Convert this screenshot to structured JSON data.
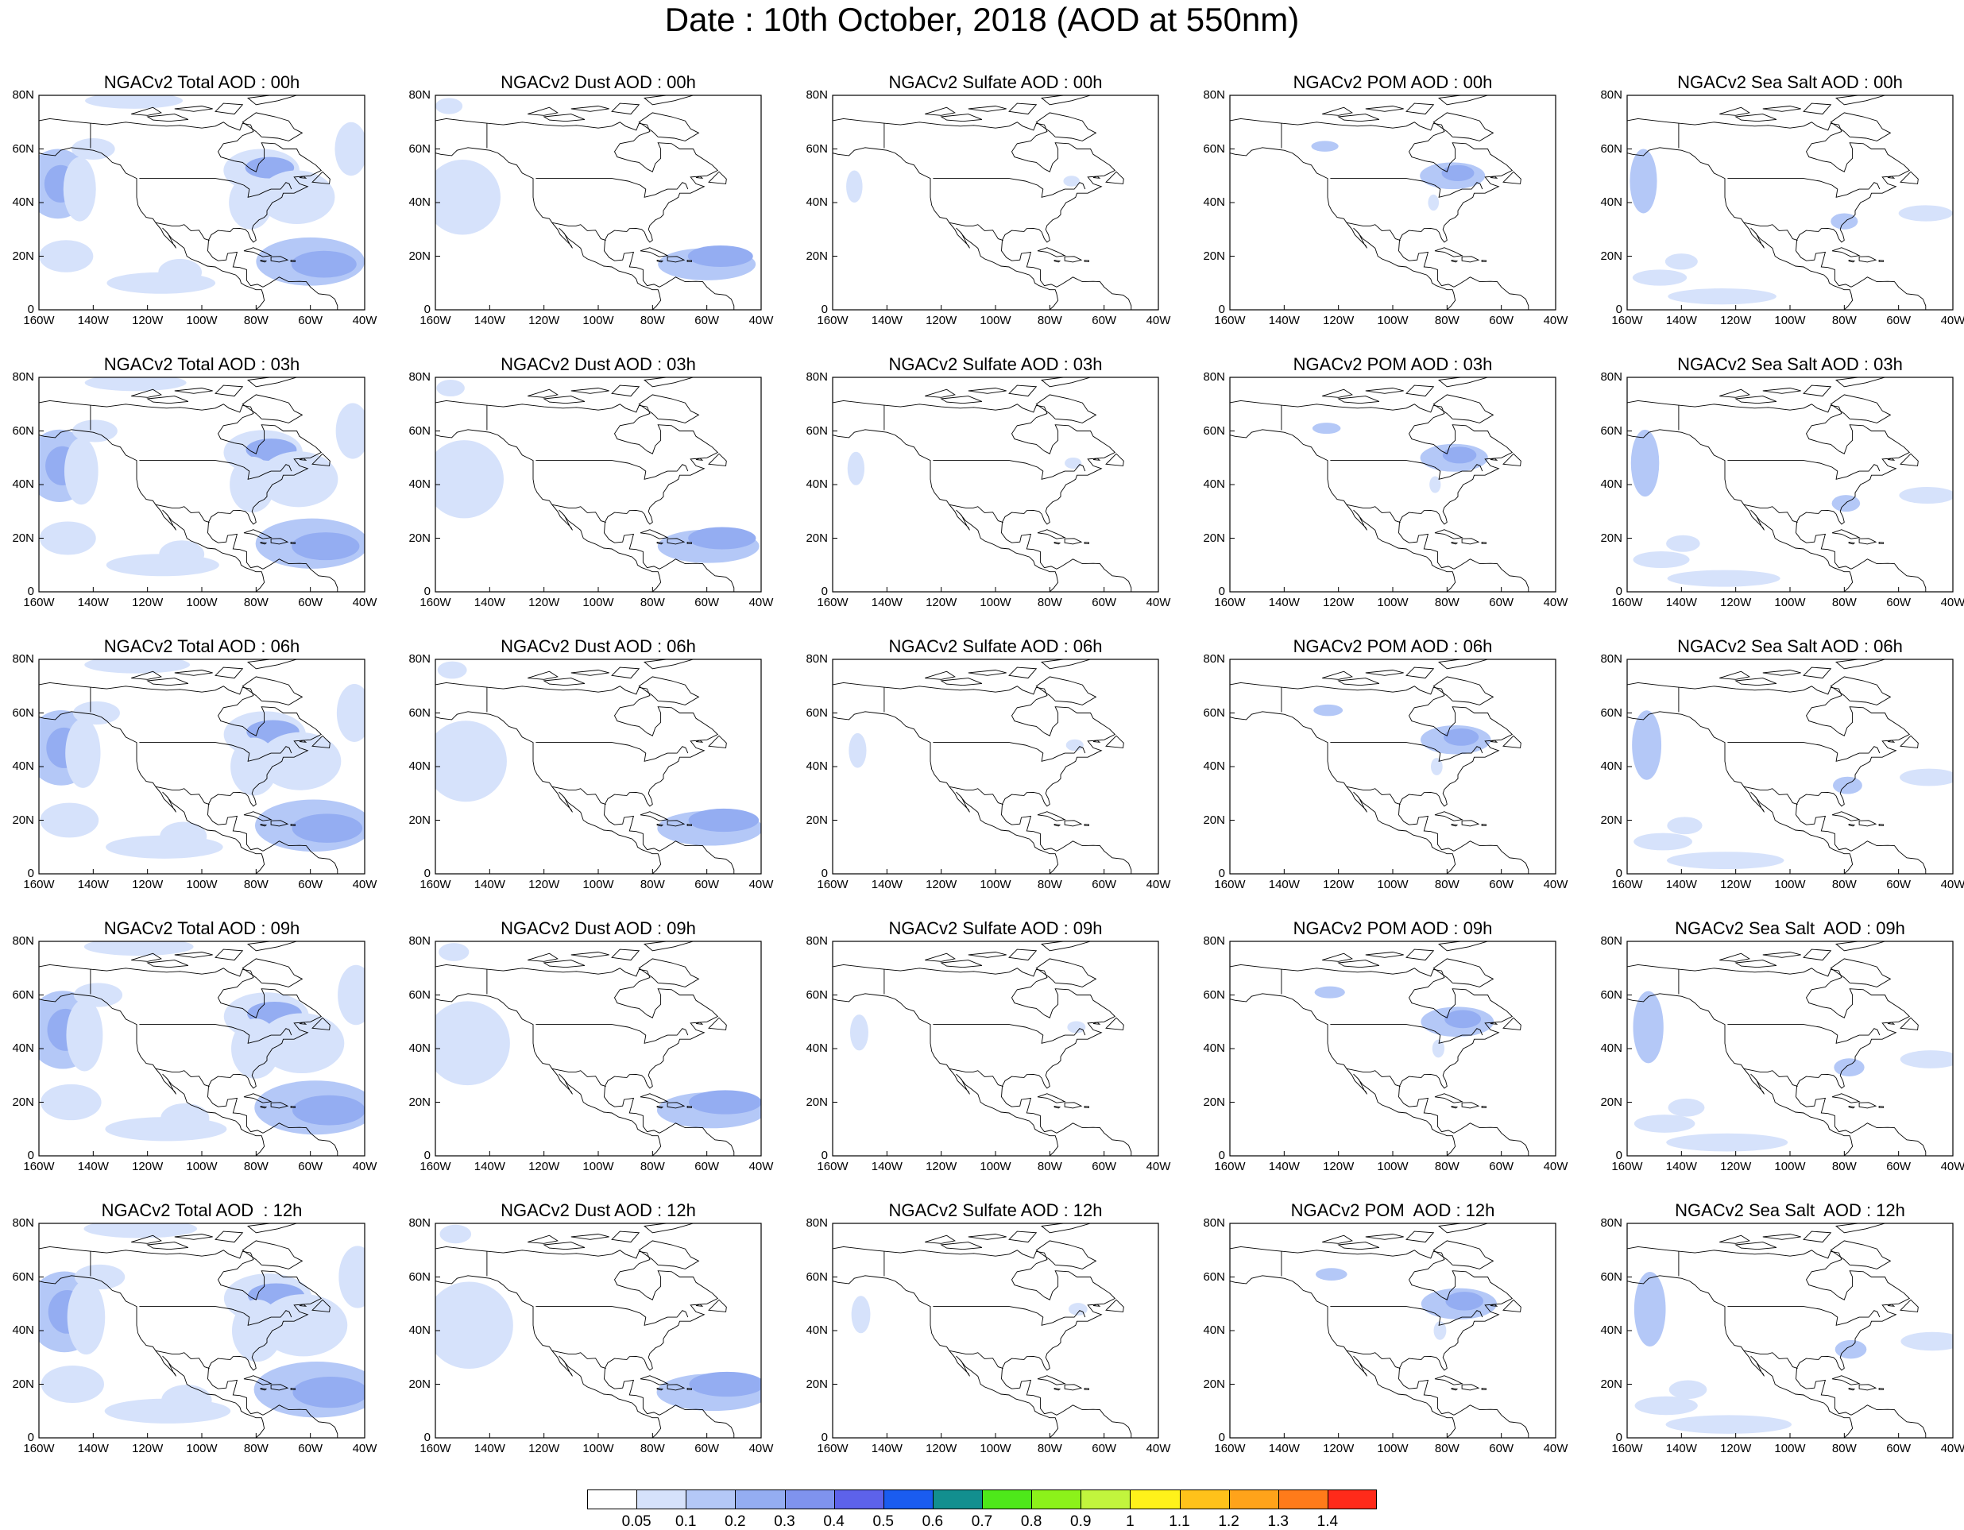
{
  "figure_title": "Date : 10th October, 2018 (AOD at 550nm)",
  "latitude_ticks": [
    "80N",
    "60N",
    "40N",
    "20N",
    "0"
  ],
  "longitude_ticks": [
    "160W",
    "140W",
    "120W",
    "100W",
    "80W",
    "60W",
    "40W"
  ],
  "panels": [
    {
      "title": "NGACv2 Total AOD : 00h",
      "species": "total"
    },
    {
      "title": "NGACv2 Dust AOD : 00h",
      "species": "dust"
    },
    {
      "title": "NGACv2 Sulfate AOD : 00h",
      "species": "sulfate"
    },
    {
      "title": "NGACv2 POM AOD : 00h",
      "species": "pom"
    },
    {
      "title": "NGACv2 Sea Salt AOD : 00h",
      "species": "seasalt"
    },
    {
      "title": "NGACv2 Total AOD : 03h",
      "species": "total"
    },
    {
      "title": "NGACv2 Dust AOD : 03h",
      "species": "dust"
    },
    {
      "title": "NGACv2 Sulfate AOD : 03h",
      "species": "sulfate"
    },
    {
      "title": "NGACv2 POM AOD : 03h",
      "species": "pom"
    },
    {
      "title": "NGACv2 Sea Salt AOD : 03h",
      "species": "seasalt"
    },
    {
      "title": "NGACv2 Total AOD : 06h",
      "species": "total"
    },
    {
      "title": "NGACv2 Dust AOD : 06h",
      "species": "dust"
    },
    {
      "title": "NGACv2 Sulfate AOD : 06h",
      "species": "sulfate"
    },
    {
      "title": "NGACv2 POM AOD : 06h",
      "species": "pom"
    },
    {
      "title": "NGACv2 Sea Salt AOD : 06h",
      "species": "seasalt"
    },
    {
      "title": "NGACv2 Total AOD : 09h",
      "species": "total"
    },
    {
      "title": "NGACv2 Dust AOD : 09h",
      "species": "dust"
    },
    {
      "title": "NGACv2 Sulfate AOD : 09h",
      "species": "sulfate"
    },
    {
      "title": "NGACv2 POM AOD : 09h",
      "species": "pom"
    },
    {
      "title": "NGACv2 Sea Salt  AOD : 09h",
      "species": "seasalt"
    },
    {
      "title": "NGACv2 Total AOD  : 12h",
      "species": "total"
    },
    {
      "title": "NGACv2 Dust AOD : 12h",
      "species": "dust"
    },
    {
      "title": "NGACv2 Sulfate AOD : 12h",
      "species": "sulfate"
    },
    {
      "title": "NGACv2 POM  AOD : 12h",
      "species": "pom"
    },
    {
      "title": "NGACv2 Sea Salt  AOD : 12h",
      "species": "seasalt"
    }
  ],
  "colorbar": {
    "colors": [
      "#ffffff",
      "#d6e2fb",
      "#b4c8f7",
      "#94adf2",
      "#7f93ee",
      "#5d62ea",
      "#1a5cf0",
      "#128f8f",
      "#4ee81a",
      "#8cf21a",
      "#c2f53d",
      "#fff21a",
      "#ffc21a",
      "#ffa31a",
      "#ff7b1a",
      "#ff2a1a"
    ],
    "labels": [
      "0.05",
      "0.1",
      "0.2",
      "0.3",
      "0.4",
      "0.5",
      "0.6",
      "0.7",
      "0.8",
      "0.9",
      "1",
      "1.1",
      "1.2",
      "1.3",
      "1.4"
    ]
  }
}
